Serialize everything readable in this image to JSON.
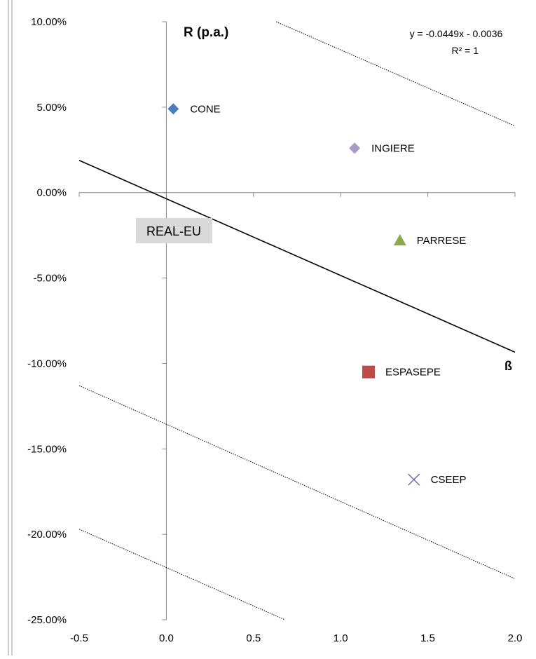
{
  "chart_data": {
    "type": "scatter",
    "title": "",
    "xlabel": "ß",
    "ylabel": "R (p.a.)",
    "xlim": [
      -0.5,
      2.0
    ],
    "ylim": [
      -0.25,
      0.1
    ],
    "x_ticks": [
      "-0.5",
      "0.0",
      "0.5",
      "1.0",
      "1.5",
      "2.0"
    ],
    "x_tick_values": [
      -0.5,
      0.0,
      0.5,
      1.0,
      1.5,
      2.0
    ],
    "y_ticks": [
      "10.00%",
      "5.00%",
      "0.00%",
      "-5.00%",
      "-10.00%",
      "-15.00%",
      "-20.00%",
      "-25.00%"
    ],
    "y_tick_values": [
      0.1,
      0.05,
      0.0,
      -0.05,
      -0.1,
      -0.15,
      -0.2,
      -0.25
    ],
    "grid": false,
    "points": [
      {
        "label": "CONE",
        "x": 0.04,
        "y": 0.049,
        "marker": "diamond",
        "color": "#4a7ebb"
      },
      {
        "label": "INGIERE",
        "x": 1.08,
        "y": 0.026,
        "marker": "diamond",
        "color": "#a99bc9"
      },
      {
        "label": "PARRESE",
        "x": 1.34,
        "y": -0.028,
        "marker": "triangle",
        "color": "#8aab4a"
      },
      {
        "label": "ESPASEPE",
        "x": 1.16,
        "y": -0.105,
        "marker": "square",
        "color": "#be4b48"
      },
      {
        "label": "CSEEP",
        "x": 1.42,
        "y": -0.168,
        "marker": "x",
        "color": "#7c64a0"
      }
    ],
    "trendline": {
      "slope": -0.0449,
      "intercept": -0.0036,
      "x_range": [
        -0.5,
        2.0
      ],
      "equation": "y = -0.0449x - 0.0036",
      "r_squared": "R² = 1",
      "color": "#000000"
    },
    "dotted_lines": [
      {
        "x1": 0.63,
        "y1": 0.1,
        "x2": 2.0,
        "y2": 0.039
      },
      {
        "x1": -0.5,
        "y1": -0.113,
        "x2": 2.0,
        "y2": -0.226
      },
      {
        "x1": -0.5,
        "y1": -0.197,
        "x2": 0.68,
        "y2": -0.25
      }
    ],
    "annotation": "REAL-EU",
    "annotation_anchor": {
      "x": 0.04,
      "y": -0.023
    }
  }
}
